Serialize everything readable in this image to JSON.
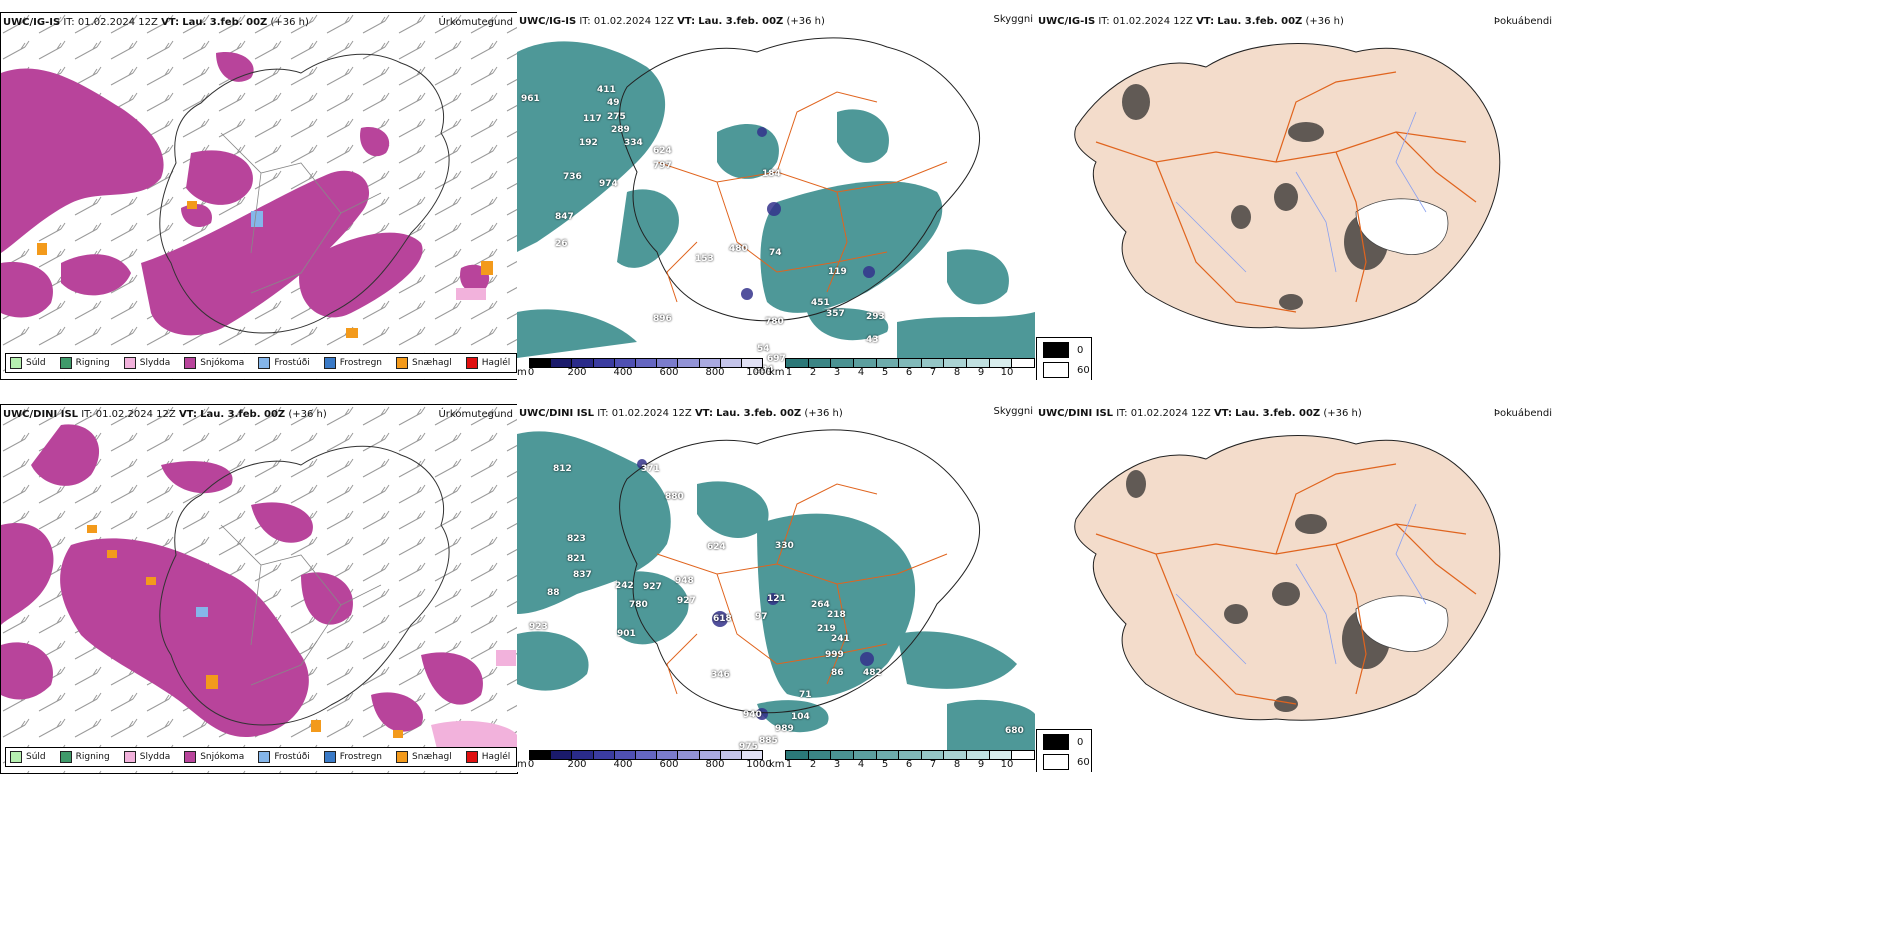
{
  "colors": {
    "snow": "#b8449b",
    "sleet_light": "#f2b2dc",
    "hail": "#f39a1b",
    "frost": "#85b6ea",
    "frostrain": "#3a7ac7",
    "drizzle": "#b6f0b0",
    "rain": "#3f9a6a",
    "hail_red": "#e01010",
    "vis_teal": "#3b8d8d",
    "vis_dark": "#34338c",
    "land_fog": "#f3dccb",
    "roads": "#e0641e",
    "rivers": "#8aa0f0"
  },
  "rows": [
    {
      "model": "UWC/IG-IS",
      "it_label": "IT:",
      "it_value": "01.02.2024 12Z",
      "vt_label": "VT:",
      "vt_value": "Lau. 3.feb. 00Z",
      "lead": "(+36 h)",
      "panels": {
        "precip_title": "Úrkomutegund",
        "vis_title": "Skyggni",
        "fog_title": "Þokuábendi"
      },
      "vis_numbers": [
        "961",
        "411",
        "49",
        "117",
        "275",
        "289",
        "192",
        "624",
        "334",
        "797",
        "736",
        "974",
        "847",
        "26",
        "153",
        "480",
        "74",
        "119",
        "184",
        "896",
        "451",
        "357",
        "780",
        "293",
        "43",
        "54",
        "697",
        "234",
        "782",
        "59",
        "58",
        "376"
      ]
    },
    {
      "model": "UWC/DINI ISL",
      "it_label": "IT:",
      "it_value": "01.02.2024 12Z",
      "vt_label": "VT:",
      "vt_value": "Lau. 3.feb. 00Z",
      "lead": "(+36 h)",
      "panels": {
        "precip_title": "Úrkomutegund",
        "vis_title": "Skyggni",
        "fog_title": "Þokuábendi"
      },
      "vis_numbers": [
        "812",
        "371",
        "880",
        "823",
        "821",
        "624",
        "330",
        "837",
        "242",
        "927",
        "948",
        "88",
        "780",
        "927",
        "121",
        "264",
        "218",
        "923",
        "901",
        "618",
        "97",
        "219",
        "241",
        "999",
        "482",
        "86",
        "71",
        "940",
        "104",
        "989",
        "885",
        "975",
        "680",
        "346"
      ]
    }
  ],
  "precip_legend": [
    {
      "label": "Súld",
      "color": "#b6f0b0"
    },
    {
      "label": "Rigning",
      "color": "#3f9a6a"
    },
    {
      "label": "Slydda",
      "color": "#f2b2dc"
    },
    {
      "label": "Snjókoma",
      "color": "#b8449b"
    },
    {
      "label": "Frostúði",
      "color": "#85b6ea"
    },
    {
      "label": "Frostregn",
      "color": "#3a7ac7"
    },
    {
      "label": "Snæhagl",
      "color": "#f39a1b"
    },
    {
      "label": "Haglél",
      "color": "#e01010"
    }
  ],
  "cloudbase_scale": {
    "unit": "m",
    "ticks": [
      "0",
      "200",
      "400",
      "600",
      "800",
      "1000"
    ],
    "colors": [
      "#000000",
      "#1a1a6b",
      "#2a2b8a",
      "#3b3ca0",
      "#4f50b3",
      "#6566c1",
      "#7b7ccc",
      "#9293d6",
      "#aaaae0",
      "#c4c4ea",
      "#e0e0f4"
    ]
  },
  "vis_scale": {
    "unit": "km",
    "ticks": [
      "1",
      "2",
      "3",
      "4",
      "5",
      "6",
      "7",
      "8",
      "9",
      "10"
    ],
    "colors": [
      "#2b7878",
      "#3b8585",
      "#4b9292",
      "#5c9f9f",
      "#6eacac",
      "#81b9b9",
      "#95c6c6",
      "#aad3d3",
      "#c0e0e0",
      "#d8eded",
      "#ffffff"
    ]
  },
  "fog_key": [
    {
      "label": "0",
      "color": "#000000"
    },
    {
      "label": "60",
      "color": "#ffffff"
    }
  ]
}
